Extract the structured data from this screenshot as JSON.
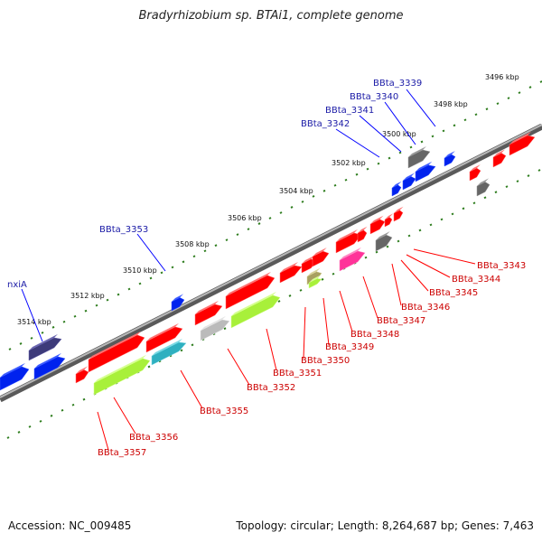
{
  "header": {
    "title": "Bradyrhizobium sp. BTAi1, complete genome"
  },
  "footer": {
    "accession": "Accession: NC_009485",
    "summary": "Topology: circular; Length: 8,264,687 bp; Genes: 7,463"
  },
  "colors": {
    "forward_gene": "#0000ff",
    "reverse_gene": "#ff0000",
    "forward_label": "#1a1aa6",
    "reverse_label": "#cc0000",
    "tick": "#2e7d1e",
    "backbone": "#888888"
  },
  "scale_ticks": [
    "3496 kbp",
    "3498 kbp",
    "3500 kbp",
    "3502 kbp",
    "3504 kbp",
    "3506 kbp",
    "3508 kbp",
    "3510 kbp",
    "3512 kbp",
    "3514 kbp"
  ],
  "forward_labels": [
    "BBta_3339",
    "BBta_3340",
    "BBta_3341",
    "BBta_3342",
    "BBta_3353",
    "nxiA"
  ],
  "reverse_labels": [
    "BBta_3343",
    "BBta_3344",
    "BBta_3345",
    "BBta_3346",
    "BBta_3347",
    "BBta_3348",
    "BBta_3349",
    "BBta_3350",
    "BBta_3351",
    "BBta_3352",
    "BBta_3355",
    "BBta_3356",
    "BBta_3357"
  ]
}
